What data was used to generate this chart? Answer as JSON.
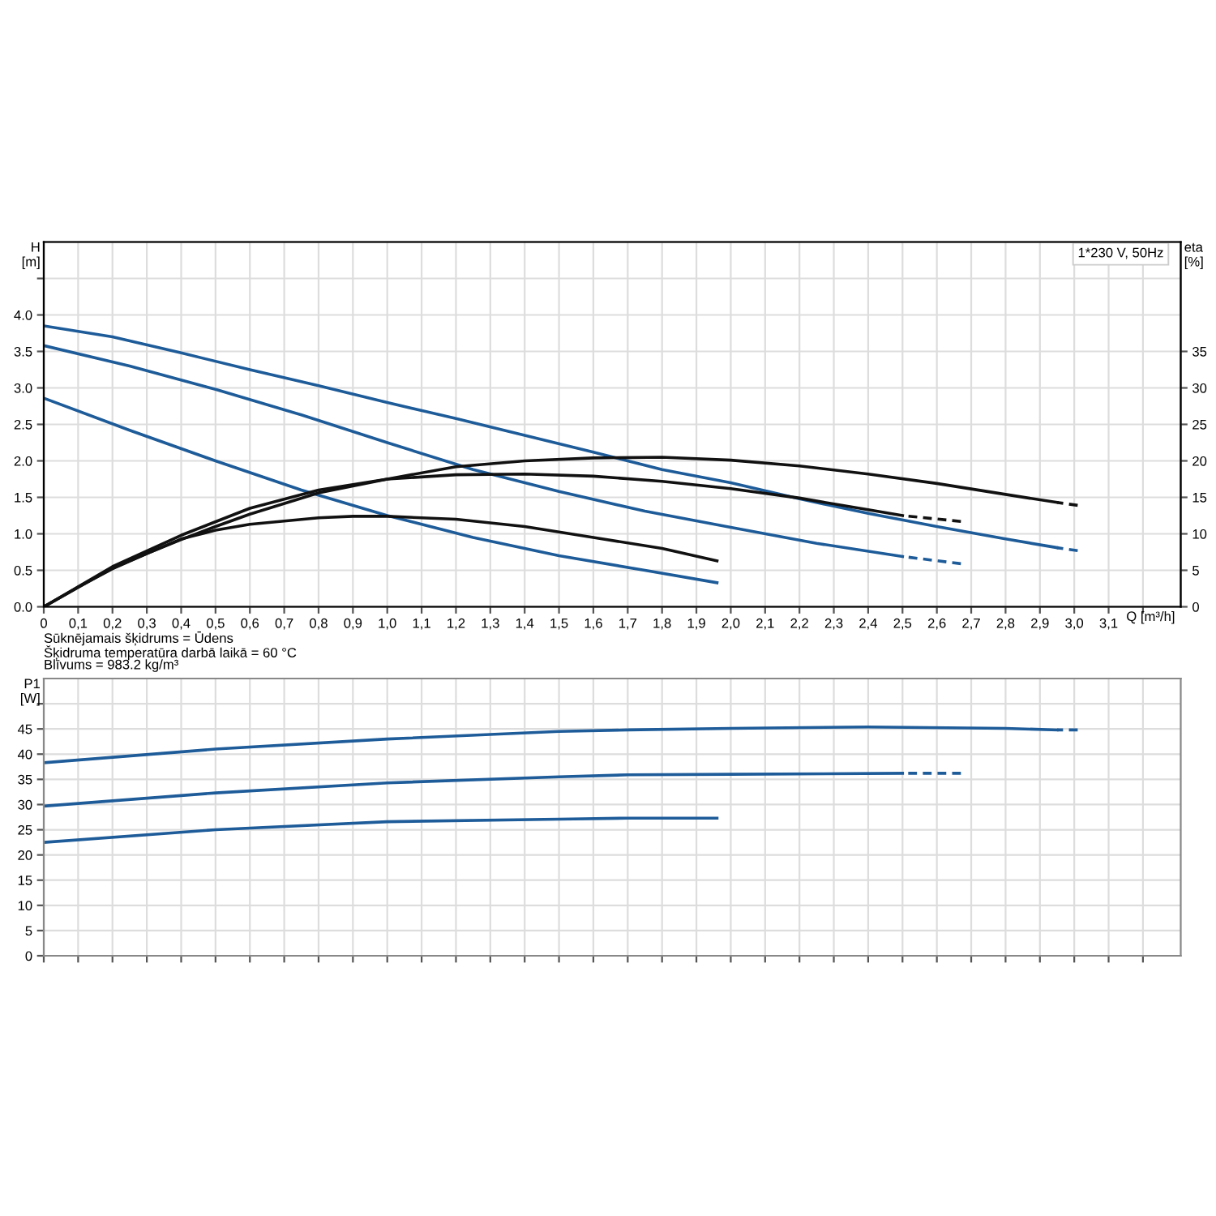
{
  "chart_data": [
    {
      "type": "line",
      "xlabel": "Q [m³/h]",
      "ylabel": "H\n[m]",
      "y2label": "eta\n[%]",
      "annotations": [
        "1*230 V, 50Hz",
        "Sūknējamais šķidrums = Ūdens",
        "Šķidruma temperatūra darbā laikā = 60 °C",
        "Blīvums = 983.2 kg/m³"
      ],
      "xlim": [
        0,
        3.31
      ],
      "xticks": [
        0,
        {
          "value": 0.1,
          "label": "0,1"
        },
        {
          "value": 0.2,
          "label": "0,2"
        },
        {
          "value": 0.3,
          "label": "0,3"
        },
        {
          "value": 0.4,
          "label": "0,4"
        },
        {
          "value": 0.5,
          "label": "0,5"
        },
        {
          "value": 0.6,
          "label": "0,6"
        },
        {
          "value": 0.7,
          "label": "0,7"
        },
        {
          "value": 0.8,
          "label": "0,8"
        },
        {
          "value": 0.9,
          "label": "0,9"
        },
        {
          "value": 1.0,
          "label": "1,0"
        },
        {
          "value": 1.1,
          "label": "1,1"
        },
        {
          "value": 1.2,
          "label": "1,2"
        },
        {
          "value": 1.3,
          "label": "1,3"
        },
        {
          "value": 1.4,
          "label": "1,4"
        },
        {
          "value": 1.5,
          "label": "1,5"
        },
        {
          "value": 1.6,
          "label": "1,6"
        },
        {
          "value": 1.7,
          "label": "1,7"
        },
        {
          "value": 1.8,
          "label": "1,8"
        },
        {
          "value": 1.9,
          "label": "1,9"
        },
        {
          "value": 2.0,
          "label": "2,0"
        },
        {
          "value": 2.1,
          "label": "2,1"
        },
        {
          "value": 2.2,
          "label": "2,2"
        },
        {
          "value": 2.3,
          "label": "2,3"
        },
        {
          "value": 2.4,
          "label": "2,4"
        },
        {
          "value": 2.5,
          "label": "2,5"
        },
        {
          "value": 2.6,
          "label": "2,6"
        },
        {
          "value": 2.7,
          "label": "2,7"
        },
        {
          "value": 2.8,
          "label": "2,8"
        },
        {
          "value": 2.9,
          "label": "2,9"
        },
        {
          "value": 3.0,
          "label": "3,0"
        },
        {
          "value": 3.1,
          "label": "3,1"
        },
        {
          "value": 3.2,
          "label": null
        }
      ],
      "ylim": [
        0,
        5
      ],
      "yticks": [
        {
          "value": 0,
          "label": "0.0"
        },
        0.5,
        {
          "value": 1,
          "label": "1.0"
        },
        1.5,
        {
          "value": 2,
          "label": "2.0"
        },
        2.5,
        {
          "value": 3,
          "label": "3.0"
        },
        3.5,
        {
          "value": 4,
          "label": "4.0"
        },
        {
          "value": 4.5,
          "label": null
        }
      ],
      "y2lim": [
        0,
        50
      ],
      "y2ticks": [
        0,
        5,
        10,
        15,
        20,
        25,
        30,
        35
      ],
      "grid": true,
      "legend": false,
      "marker": "none",
      "series": [
        {
          "color": "#1d5b99",
          "axis": "y",
          "line_style": "solid",
          "x": [
            0,
            0.2,
            0.4,
            0.6,
            0.8,
            1.0,
            1.2,
            1.4,
            1.6,
            1.8,
            2.0,
            2.2,
            2.4,
            2.6,
            2.8,
            2.95
          ],
          "values": [
            3.85,
            3.7,
            3.48,
            3.25,
            3.03,
            2.8,
            2.58,
            2.35,
            2.12,
            1.88,
            1.7,
            1.48,
            1.28,
            1.1,
            0.93,
            0.81
          ]
        },
        {
          "color": "#1d5b99",
          "axis": "y",
          "line_style": "dashed",
          "x": [
            2.95,
            3.01
          ],
          "values": [
            0.81,
            0.77
          ]
        },
        {
          "color": "#1d5b99",
          "axis": "y",
          "line_style": "solid",
          "x": [
            0,
            0.25,
            0.5,
            0.75,
            1.0,
            1.25,
            1.5,
            1.75,
            2.0,
            2.25,
            2.5
          ],
          "values": [
            3.58,
            3.3,
            2.98,
            2.63,
            2.25,
            1.88,
            1.58,
            1.31,
            1.09,
            0.87,
            0.69
          ]
        },
        {
          "color": "#1d5b99",
          "axis": "y",
          "line_style": "dashed",
          "x": [
            2.5,
            2.67
          ],
          "values": [
            0.69,
            0.59
          ]
        },
        {
          "color": "#1d5b99",
          "axis": "y",
          "line_style": "solid",
          "x": [
            0,
            0.25,
            0.5,
            0.75,
            1.0,
            1.25,
            1.5,
            1.75,
            1.96
          ],
          "values": [
            2.86,
            2.42,
            2.0,
            1.6,
            1.25,
            0.95,
            0.7,
            0.5,
            0.33
          ]
        },
        {
          "color": "#111111",
          "axis": "y2",
          "line_style": "solid",
          "x": [
            0,
            0.1,
            0.2,
            0.3,
            0.4,
            0.5,
            0.6,
            0.8,
            1.0,
            1.2,
            1.4,
            1.6,
            1.8,
            2.0,
            2.2,
            2.4,
            2.6,
            2.8,
            2.95
          ],
          "values": [
            0,
            2.7,
            5.2,
            7.3,
            9.2,
            11,
            12.7,
            15.6,
            17.5,
            19.2,
            20.0,
            20.4,
            20.5,
            20.1,
            19.3,
            18.2,
            16.9,
            15.4,
            14.3
          ]
        },
        {
          "color": "#111111",
          "axis": "y2",
          "line_style": "dashed",
          "x": [
            2.95,
            3.01
          ],
          "values": [
            14.3,
            13.9
          ]
        },
        {
          "color": "#111111",
          "axis": "y2",
          "line_style": "solid",
          "x": [
            0,
            0.2,
            0.4,
            0.6,
            0.8,
            1.0,
            1.2,
            1.4,
            1.6,
            1.8,
            2.0,
            2.2,
            2.4,
            2.5
          ],
          "values": [
            0,
            5.5,
            9.8,
            13.5,
            16.0,
            17.5,
            18.1,
            18.2,
            17.9,
            17.2,
            16.2,
            14.9,
            13.3,
            12.5
          ]
        },
        {
          "color": "#111111",
          "axis": "y2",
          "line_style": "dashed",
          "x": [
            2.5,
            2.67
          ],
          "values": [
            12.5,
            11.7
          ]
        },
        {
          "color": "#111111",
          "axis": "y2",
          "line_style": "solid",
          "x": [
            0,
            0.2,
            0.4,
            0.5,
            0.6,
            0.8,
            0.9,
            1.0,
            1.2,
            1.4,
            1.6,
            1.8,
            1.96
          ],
          "values": [
            0,
            5.3,
            9.3,
            10.5,
            11.3,
            12.2,
            12.4,
            12.4,
            12.0,
            11.0,
            9.5,
            8.0,
            6.3
          ]
        }
      ]
    },
    {
      "type": "line",
      "ylabel": "P1\n[W]",
      "xlim": [
        0,
        3.31
      ],
      "xticks": [
        0,
        0.1,
        0.2,
        0.3,
        0.4,
        0.5,
        0.6,
        0.7,
        0.8,
        0.9,
        1.0,
        1.1,
        1.2,
        1.3,
        1.4,
        1.5,
        1.6,
        1.7,
        1.8,
        1.9,
        2.0,
        2.1,
        2.2,
        2.3,
        2.4,
        2.5,
        2.6,
        2.7,
        2.8,
        2.9,
        3.0,
        3.1,
        3.2
      ],
      "ylim": [
        0,
        55
      ],
      "yticks": [
        0,
        5,
        10,
        15,
        20,
        25,
        30,
        35,
        40,
        45,
        {
          "value": 50,
          "label": null
        }
      ],
      "tick_labels": "y",
      "grid": true,
      "legend": false,
      "marker": "none",
      "series": [
        {
          "color": "#1d5b99",
          "line_style": "solid",
          "x": [
            0,
            0.5,
            1.0,
            1.5,
            1.7,
            2.0,
            2.4,
            2.8,
            2.95
          ],
          "values": [
            38.3,
            41,
            43,
            44.5,
            44.8,
            45.1,
            45.4,
            45.1,
            44.8
          ]
        },
        {
          "color": "#1d5b99",
          "line_style": "dashed",
          "x": [
            2.95,
            3.01
          ],
          "values": [
            44.8,
            44.8
          ]
        },
        {
          "color": "#1d5b99",
          "line_style": "solid",
          "x": [
            0,
            0.5,
            1.0,
            1.5,
            1.7,
            2.0,
            2.5
          ],
          "values": [
            29.7,
            32.3,
            34.3,
            35.5,
            35.9,
            36.0,
            36.2
          ]
        },
        {
          "color": "#1d5b99",
          "line_style": "dashed",
          "x": [
            2.5,
            2.67
          ],
          "values": [
            36.2,
            36.2
          ]
        },
        {
          "color": "#1d5b99",
          "line_style": "solid",
          "x": [
            0,
            0.5,
            1.0,
            1.5,
            1.7,
            1.96
          ],
          "values": [
            22.5,
            25.0,
            26.6,
            27.1,
            27.3,
            27.3
          ]
        }
      ]
    }
  ]
}
